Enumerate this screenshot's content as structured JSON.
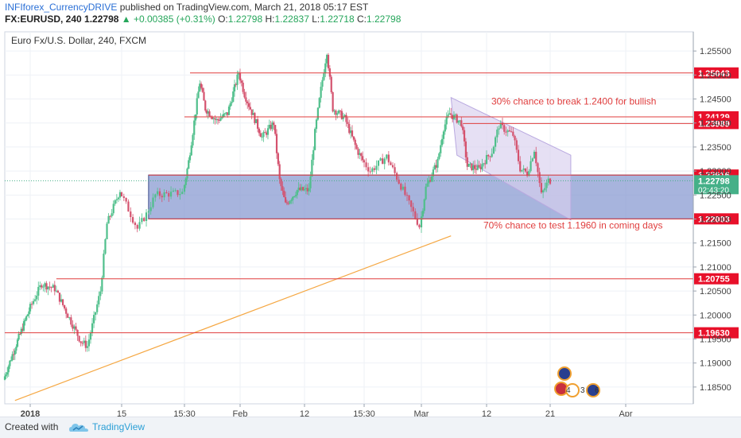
{
  "header": {
    "author": "INFIforex_CurrencyDRIVE",
    "published": "published on TradingView.com, March 21, 2018 05:17 EST",
    "symbol": "FX:EURUSD, 240",
    "last": "1.22798",
    "change": "▲ +0.00385 (+0.31%)",
    "o_label": "O:",
    "o": "1.22798",
    "h_label": "H:",
    "h": "1.22837",
    "l_label": "L:",
    "l": "1.22718",
    "c_label": "C:",
    "c": "1.22798"
  },
  "footer": {
    "created_with": "Created with",
    "brand": "TradingView"
  },
  "colors": {
    "up": "#4fbf8b",
    "down": "#d4526e",
    "level": "#e03e3e",
    "zone_fill": "#8a9bd1",
    "channel_fill": "#d8d0ee",
    "trend": "#f5a742",
    "annotation": "#e03e3e",
    "price_tag_bg": "#e8102a",
    "last_tag_bg": "#45b088"
  },
  "chart_data": {
    "type": "candlestick",
    "title": "Euro Fx/U.S. Dollar, 240, FXCM",
    "x_ticks": [
      "2018",
      "15",
      "15:30",
      "Feb",
      "12",
      "15:30",
      "Mar",
      "12",
      "21",
      "Apr"
    ],
    "y_ticks": [
      "1.25500",
      "1.25000",
      "1.24500",
      "1.24000",
      "1.23500",
      "1.23000",
      "1.22500",
      "1.22000",
      "1.21500",
      "1.21000",
      "1.20500",
      "1.20000",
      "1.19500",
      "1.19000",
      "1.18500"
    ],
    "ylim": [
      1.1815,
      1.259
    ],
    "levels": [
      {
        "label": "1.25043",
        "value": 1.25043,
        "from": "Jan 23"
      },
      {
        "label": "1.24129",
        "value": 1.24129,
        "from": "Jan 22"
      },
      {
        "label": "1.23989",
        "value": 1.23989,
        "from": "Mar 8"
      },
      {
        "label": "1.22916",
        "value": 1.22916,
        "from": "Jan 18"
      },
      {
        "label": "1.22003",
        "value": 1.22003,
        "from": "Jan 18"
      },
      {
        "label": "1.20755",
        "value": 1.20755,
        "from": "Jan 5"
      },
      {
        "label": "1.19630",
        "value": 1.1963,
        "from": "Dec 27"
      }
    ],
    "last_price": {
      "label": "1.22798",
      "value": 1.22798,
      "countdown": "02:43:20"
    },
    "zone": {
      "from": "Jan 18",
      "to": "end",
      "low": 1.22003,
      "high": 1.22916
    },
    "annotations": [
      {
        "text": "30% chance to break 1.2400 for bullish",
        "price": 1.2445
      },
      {
        "text": "70% chance to test 1.1960 in coming days",
        "price": 1.2187
      }
    ],
    "event_badges": [
      "4",
      "3",
      "6"
    ],
    "anchors": [
      {
        "date": "Dec 27",
        "price": 1.1865
      },
      {
        "date": "Dec 29",
        "price": 1.1925
      },
      {
        "date": "Jan 3",
        "price": 1.2065
      },
      {
        "date": "Jan 5",
        "price": 1.2055
      },
      {
        "date": "Jan 9",
        "price": 1.1945
      },
      {
        "date": "Jan 10",
        "price": 1.1935
      },
      {
        "date": "Jan 12",
        "price": 1.205
      },
      {
        "date": "Jan 13",
        "price": 1.219
      },
      {
        "date": "Jan 15",
        "price": 1.226
      },
      {
        "date": "Jan 17",
        "price": 1.218
      },
      {
        "date": "Jan 18",
        "price": 1.221
      },
      {
        "date": "Jan 19",
        "price": 1.225
      },
      {
        "date": "Jan 22",
        "price": 1.2255
      },
      {
        "date": "Jan 23",
        "price": 1.232
      },
      {
        "date": "Jan 25",
        "price": 1.2485
      },
      {
        "date": "Jan 26",
        "price": 1.243
      },
      {
        "date": "Jan 28",
        "price": 1.2405
      },
      {
        "date": "Jan 30",
        "price": 1.242
      },
      {
        "date": "Feb 1",
        "price": 1.2505
      },
      {
        "date": "Feb 2",
        "price": 1.246
      },
      {
        "date": "Feb 5",
        "price": 1.237
      },
      {
        "date": "Feb 7",
        "price": 1.24
      },
      {
        "date": "Feb 8",
        "price": 1.228
      },
      {
        "date": "Feb 9",
        "price": 1.223
      },
      {
        "date": "Feb 11",
        "price": 1.226
      },
      {
        "date": "Feb 13",
        "price": 1.226
      },
      {
        "date": "Feb 14",
        "price": 1.238
      },
      {
        "date": "Feb 15",
        "price": 1.247
      },
      {
        "date": "Feb 16",
        "price": 1.255
      },
      {
        "date": "Feb 17",
        "price": 1.243
      },
      {
        "date": "Feb 19",
        "price": 1.241
      },
      {
        "date": "Feb 21",
        "price": 1.2345
      },
      {
        "date": "Feb 23",
        "price": 1.23
      },
      {
        "date": "Feb 25",
        "price": 1.233
      },
      {
        "date": "Feb 27",
        "price": 1.226
      },
      {
        "date": "Mar 1",
        "price": 1.2185
      },
      {
        "date": "Mar 2",
        "price": 1.2265
      },
      {
        "date": "Mar 4",
        "price": 1.232
      },
      {
        "date": "Mar 5",
        "price": 1.239
      },
      {
        "date": "Mar 6",
        "price": 1.242
      },
      {
        "date": "Mar 8",
        "price": 1.24
      },
      {
        "date": "Mar 9",
        "price": 1.231
      },
      {
        "date": "Mar 11",
        "price": 1.2305
      },
      {
        "date": "Mar 13",
        "price": 1.234
      },
      {
        "date": "Mar 14",
        "price": 1.2395
      },
      {
        "date": "Mar 16",
        "price": 1.2375
      },
      {
        "date": "Mar 17",
        "price": 1.2305
      },
      {
        "date": "Mar 18",
        "price": 1.2295
      },
      {
        "date": "Mar 19",
        "price": 1.2345
      },
      {
        "date": "Mar 20",
        "price": 1.225
      },
      {
        "date": "Mar 21",
        "price": 1.228
      }
    ]
  }
}
